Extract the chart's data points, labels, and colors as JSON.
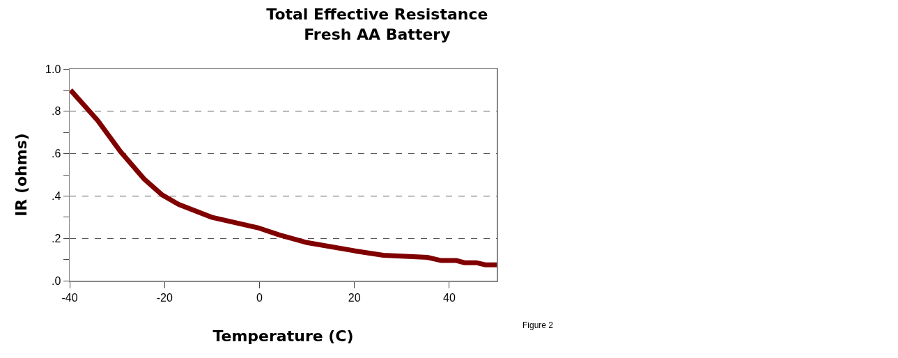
{
  "chart_data": {
    "type": "line",
    "title": "Total Effective Resistance\nFresh AA Battery",
    "xlabel": "Temperature (C)",
    "ylabel": "IR (ohms)",
    "x": [
      -39.8,
      -34.1,
      -29.3,
      -24.3,
      -20.5,
      -17,
      -10.1,
      -0.3,
      4.1,
      10,
      20.3,
      26.1,
      35.4,
      38.3,
      41.5,
      43.2,
      45.7,
      47.6,
      50
    ],
    "series": [
      {
        "color": "#800000",
        "values": [
          0.9,
          0.757,
          0.61,
          0.48,
          0.405,
          0.36,
          0.3,
          0.25,
          0.217,
          0.18,
          0.14,
          0.12,
          0.11,
          0.095,
          0.095,
          0.085,
          0.085,
          0.075,
          0.075
        ]
      }
    ],
    "xlim": [
      -40,
      50
    ],
    "xticks": [
      -40,
      -20,
      0,
      20,
      40
    ],
    "ylim": [
      0,
      1
    ],
    "yticks": [
      {
        "value": 0,
        "label": ".0"
      },
      {
        "value": 0.1,
        "label": null
      },
      {
        "value": 0.2,
        "label": ".2"
      },
      {
        "value": 0.3,
        "label": null
      },
      {
        "value": 0.4,
        "label": ".4"
      },
      {
        "value": 0.5,
        "label": null
      },
      {
        "value": 0.6,
        "label": ".6"
      },
      {
        "value": 0.7,
        "label": null
      },
      {
        "value": 0.8,
        "label": ".8"
      },
      {
        "value": 0.9,
        "label": null
      },
      {
        "value": 1,
        "label": "1.0"
      }
    ],
    "grid": "y",
    "line_style": "solid",
    "marker": "none",
    "legend": false,
    "annotations": [
      "Figure 2"
    ]
  }
}
